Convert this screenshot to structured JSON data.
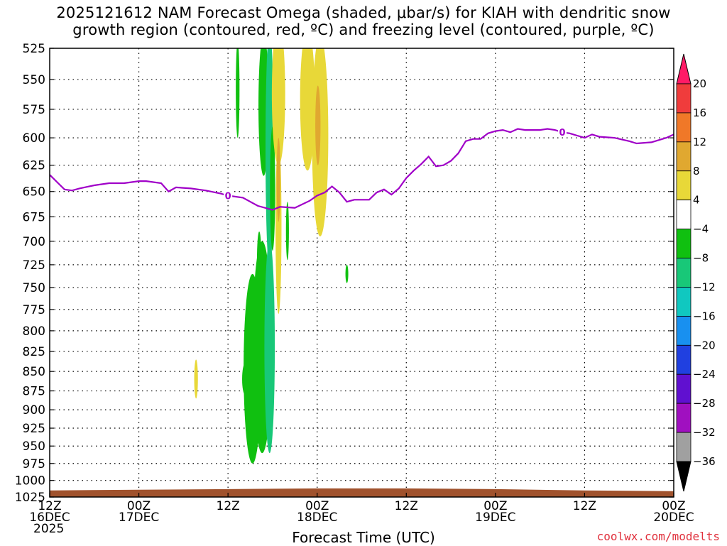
{
  "chart_data": {
    "type": "heatmap",
    "title_lines": [
      "2025121612 NAM Forecast Omega (shaded, μbar/s) for KIAH with dendritic snow",
      "growth region (contoured, red, ºC) and freezing level (contoured, purple, ºC)"
    ],
    "xlabel": "Forecast Time (UTC)",
    "credit": "coolwx.com/modelts",
    "x_range_hours": [
      0,
      84
    ],
    "y_levels": [
      525,
      550,
      575,
      600,
      625,
      650,
      675,
      700,
      725,
      750,
      775,
      800,
      825,
      850,
      875,
      900,
      925,
      950,
      975,
      1000,
      1025
    ],
    "y_range": [
      525,
      1025
    ],
    "x_ticks": [
      {
        "hour": 0,
        "lines": [
          "12Z",
          "16DEC",
          "2025"
        ]
      },
      {
        "hour": 12,
        "lines": [
          "00Z",
          "17DEC"
        ]
      },
      {
        "hour": 24,
        "lines": [
          "12Z"
        ]
      },
      {
        "hour": 36,
        "lines": [
          "00Z",
          "18DEC"
        ]
      },
      {
        "hour": 48,
        "lines": [
          "12Z"
        ]
      },
      {
        "hour": 60,
        "lines": [
          "00Z",
          "19DEC"
        ]
      },
      {
        "hour": 72,
        "lines": [
          "12Z"
        ]
      },
      {
        "hour": 84,
        "lines": [
          "00Z",
          "20DEC"
        ]
      }
    ],
    "grid": true,
    "colorbar": {
      "labels": [
        "20",
        "16",
        "12",
        "8",
        "4",
        "−4",
        "−8",
        "−12",
        "−16",
        "−20",
        "−24",
        "−28",
        "−32",
        "−36"
      ],
      "colors": [
        "#ff1a66",
        "#f03c3c",
        "#f07828",
        "#e0a830",
        "#e8d838",
        "#ffffff",
        "#10c010",
        "#18c878",
        "#10c8c0",
        "#1890f0",
        "#2040e0",
        "#6010d0",
        "#a010c0",
        "#a0a0a0",
        "#000000"
      ]
    },
    "freezing_level": {
      "label": "0",
      "color": "#a000c8",
      "points": [
        [
          0,
          634
        ],
        [
          1,
          641
        ],
        [
          2,
          648
        ],
        [
          3,
          649
        ],
        [
          4,
          647
        ],
        [
          6,
          644
        ],
        [
          8,
          642
        ],
        [
          10,
          642
        ],
        [
          12,
          640
        ],
        [
          13,
          640
        ],
        [
          15,
          642
        ],
        [
          16,
          650
        ],
        [
          17,
          646
        ],
        [
          19,
          647
        ],
        [
          21,
          649
        ],
        [
          23,
          652
        ],
        [
          24,
          654
        ],
        [
          26,
          656
        ],
        [
          28,
          664
        ],
        [
          30,
          668
        ],
        [
          31,
          665
        ],
        [
          33,
          666
        ],
        [
          35,
          659
        ],
        [
          36,
          654
        ],
        [
          37,
          651
        ],
        [
          38,
          645
        ],
        [
          39,
          651
        ],
        [
          40,
          660
        ],
        [
          41,
          658
        ],
        [
          43,
          658
        ],
        [
          44,
          651
        ],
        [
          45,
          648
        ],
        [
          46,
          653
        ],
        [
          47,
          647
        ],
        [
          48,
          637
        ],
        [
          49,
          630
        ],
        [
          50,
          624
        ],
        [
          51,
          617
        ],
        [
          52,
          626
        ],
        [
          53,
          625
        ],
        [
          54,
          621
        ],
        [
          55,
          614
        ],
        [
          56,
          603
        ],
        [
          57,
          601
        ],
        [
          58,
          601
        ],
        [
          59,
          596
        ],
        [
          60,
          594
        ],
        [
          61,
          593
        ],
        [
          62,
          595
        ],
        [
          63,
          592
        ],
        [
          64,
          593
        ],
        [
          66,
          593
        ],
        [
          67,
          592
        ],
        [
          68,
          593
        ],
        [
          69,
          595
        ],
        [
          70,
          596
        ],
        [
          71,
          598
        ],
        [
          72,
          600
        ],
        [
          73,
          597
        ],
        [
          74,
          599
        ],
        [
          76,
          600
        ],
        [
          78,
          603
        ],
        [
          79,
          605
        ],
        [
          81,
          604
        ],
        [
          83,
          600
        ],
        [
          84,
          597
        ]
      ]
    },
    "omega_regions": [
      {
        "color": "#10c010",
        "center": [
          26.3,
          860
        ],
        "rx": 0.4,
        "ry": 20
      },
      {
        "color": "#10c010",
        "center": [
          25.3,
          560
        ],
        "rx": 0.25,
        "ry": 40
      },
      {
        "color": "#10c010",
        "center": [
          27.3,
          855
        ],
        "rx": 1.2,
        "ry": 120
      },
      {
        "color": "#10c010",
        "center": [
          28.6,
          830
        ],
        "rx": 1.3,
        "ry": 130
      },
      {
        "color": "#10c010",
        "center": [
          28.2,
          720
        ],
        "rx": 0.3,
        "ry": 30
      },
      {
        "color": "#10c010",
        "center": [
          28.8,
          575
        ],
        "rx": 0.7,
        "ry": 60
      },
      {
        "color": "#18c878",
        "center": [
          29.6,
          620
        ],
        "rx": 0.55,
        "ry": 110
      },
      {
        "color": "#18c878",
        "center": [
          29.6,
          830
        ],
        "rx": 0.7,
        "ry": 130
      },
      {
        "color": "#10c010",
        "center": [
          30.0,
          650
        ],
        "rx": 0.35,
        "ry": 60
      },
      {
        "color": "#10c010",
        "center": [
          32.0,
          690
        ],
        "rx": 0.2,
        "ry": 30
      },
      {
        "color": "#10c010",
        "center": [
          40.0,
          735
        ],
        "rx": 0.12,
        "ry": 10
      },
      {
        "color": "#e8d838",
        "center": [
          19.7,
          860
        ],
        "rx": 0.25,
        "ry": 25
      },
      {
        "color": "#e8d838",
        "center": [
          30.8,
          565
        ],
        "rx": 0.9,
        "ry": 60
      },
      {
        "color": "#e8d838",
        "center": [
          30.8,
          690
        ],
        "rx": 0.4,
        "ry": 90
      },
      {
        "color": "#e8d838",
        "center": [
          34.7,
          570
        ],
        "rx": 1.0,
        "ry": 60
      },
      {
        "color": "#e8d838",
        "center": [
          36.4,
          605
        ],
        "rx": 1.1,
        "ry": 90
      },
      {
        "color": "#e0a830",
        "center": [
          30.8,
          640
        ],
        "rx": 0.25,
        "ry": 40
      },
      {
        "color": "#e0a830",
        "center": [
          36.1,
          590
        ],
        "rx": 0.35,
        "ry": 35
      }
    ],
    "terrain": {
      "color": "#a0522d",
      "points": [
        [
          0,
          1015
        ],
        [
          12,
          1014
        ],
        [
          24,
          1013
        ],
        [
          36,
          1012
        ],
        [
          48,
          1012
        ],
        [
          60,
          1013
        ],
        [
          72,
          1015
        ],
        [
          84,
          1016
        ]
      ]
    }
  }
}
